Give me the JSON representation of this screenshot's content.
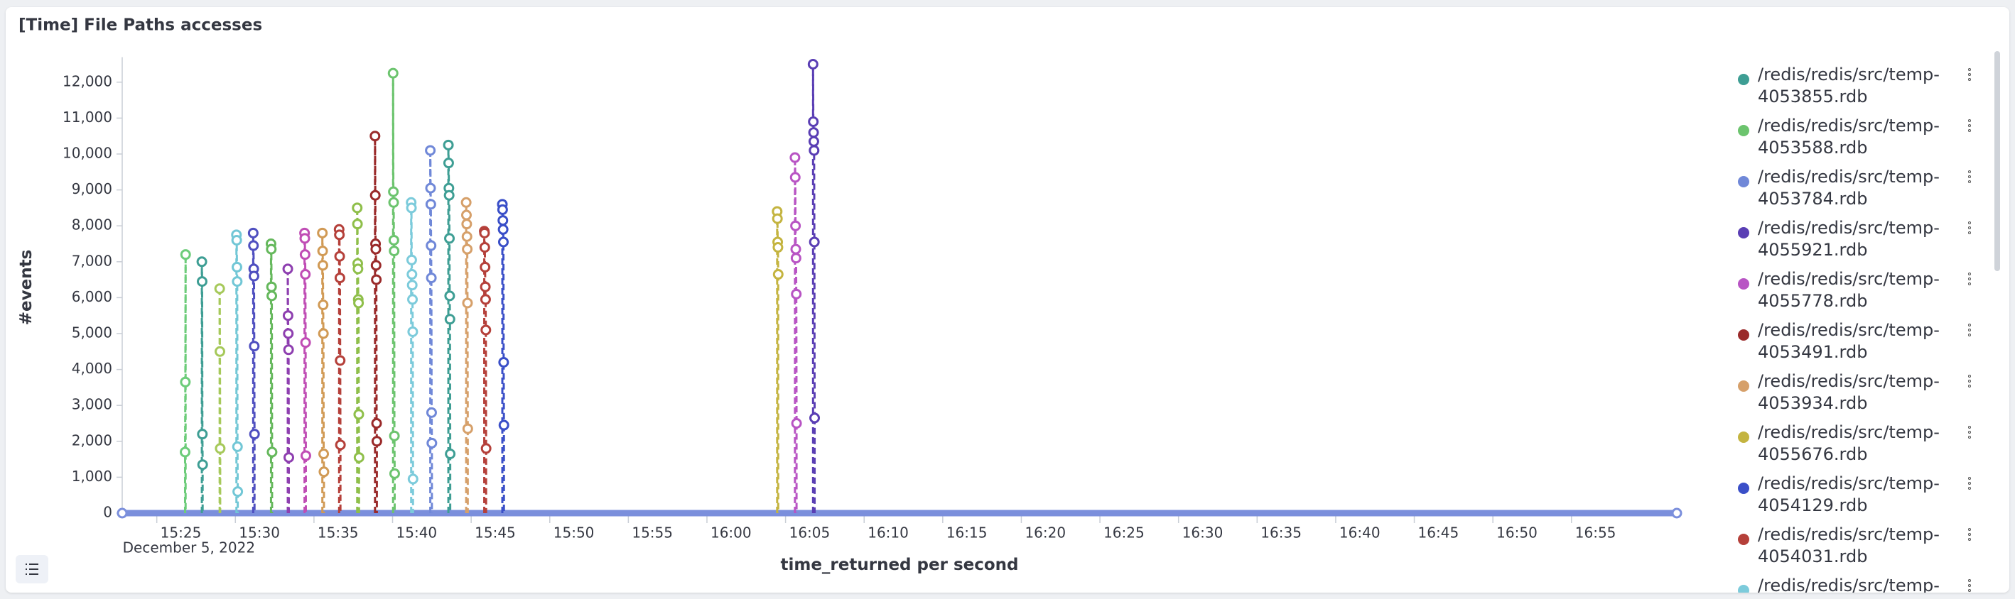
{
  "chart_data": {
    "type": "line",
    "title": "[Time] File Paths accesses",
    "y_label": "#events",
    "x_label": "time_returned per second",
    "x_sublabel": "December 5, 2022",
    "xlim": [
      "15:22:48",
      "17:01:42"
    ],
    "xticks": [
      "15:25",
      "15:30",
      "15:35",
      "15:40",
      "15:45",
      "15:50",
      "15:55",
      "16:00",
      "16:05",
      "16:10",
      "16:15",
      "16:20",
      "16:25",
      "16:30",
      "16:35",
      "16:40",
      "16:45",
      "16:50",
      "16:55"
    ],
    "ylim": [
      0,
      12500
    ],
    "yticks": [
      0,
      {
        "value": 1000,
        "label": "1,000"
      },
      {
        "value": 2000,
        "label": "2,000"
      },
      {
        "value": 3000,
        "label": "3,000"
      },
      {
        "value": 4000,
        "label": "4,000"
      },
      {
        "value": 5000,
        "label": "5,000"
      },
      {
        "value": 6000,
        "label": "6,000"
      },
      {
        "value": 7000,
        "label": "7,000"
      },
      {
        "value": 8000,
        "label": "8,000"
      },
      {
        "value": 9000,
        "label": "9,000"
      },
      {
        "value": 10000,
        "label": "10,000"
      },
      {
        "value": 11000,
        "label": "11,000"
      },
      {
        "value": 12000,
        "label": "12,000"
      }
    ],
    "grid": false,
    "series": [
      {
        "name": "/redis/redis/src/temp-4053855.rdb",
        "color": "#3e9e94",
        "dashed": true,
        "x": [
          "15:43:33",
          "15:43:34",
          "15:43:35",
          "15:43:36",
          "15:43:37",
          "15:43:38",
          "15:43:39",
          "15:43:40"
        ],
        "values": [
          10250,
          9750,
          9050,
          8850,
          7650,
          6050,
          5400,
          1650
        ]
      },
      {
        "name": "/redis/redis/src/temp-4053588.rdb",
        "color": "#6cc46e",
        "dashed": true,
        "x": [
          "15:40:02",
          "15:40:03",
          "15:40:04",
          "15:40:05",
          "15:40:06",
          "15:40:07",
          "15:40:08"
        ],
        "values": [
          12250,
          8950,
          8650,
          7600,
          7300,
          2150,
          1100
        ]
      },
      {
        "name": "/redis/redis/src/temp-4053784.rdb",
        "color": "#7088d8",
        "dashed": true,
        "x": [
          "15:42:24",
          "15:42:25",
          "15:42:26",
          "15:42:27",
          "15:42:28",
          "15:42:29",
          "15:42:30"
        ],
        "values": [
          10100,
          9050,
          8600,
          7450,
          6550,
          2800,
          1950
        ]
      },
      {
        "name": "/redis/redis/src/temp-4055921.rdb",
        "color": "#5a3eb4",
        "dashed": true,
        "x": [
          "16:06:45",
          "16:06:46",
          "16:06:47",
          "16:06:48",
          "16:06:49",
          "16:06:50",
          "16:06:51"
        ],
        "values": [
          12500,
          10900,
          10600,
          10350,
          10100,
          7550,
          2650
        ]
      },
      {
        "name": "/redis/redis/src/temp-4055778.rdb",
        "color": "#b854c4",
        "dashed": true,
        "x": [
          "16:05:36",
          "16:05:37",
          "16:05:38",
          "16:05:39",
          "16:05:40",
          "16:05:41",
          "16:05:42"
        ],
        "values": [
          9900,
          9350,
          8000,
          7350,
          7100,
          6100,
          2500
        ]
      },
      {
        "name": "/redis/redis/src/temp-4053491.rdb",
        "color": "#9a2a2a",
        "dashed": true,
        "x": [
          "15:38:53",
          "15:38:54",
          "15:38:55",
          "15:38:56",
          "15:38:57",
          "15:38:58",
          "15:38:59",
          "15:39:00"
        ],
        "values": [
          10500,
          8850,
          7500,
          7350,
          6900,
          6500,
          2500,
          2000
        ]
      },
      {
        "name": "/redis/redis/src/temp-4053934.rdb",
        "color": "#d6a06a",
        "dashed": true,
        "x": [
          "15:44:41",
          "15:44:42",
          "15:44:43",
          "15:44:44",
          "15:44:45",
          "15:44:46",
          "15:44:47"
        ],
        "values": [
          8650,
          8300,
          8050,
          7700,
          7350,
          5850,
          2350
        ]
      },
      {
        "name": "/redis/redis/src/temp-4055676.rdb",
        "color": "#c4b440",
        "dashed": true,
        "x": [
          "16:04:28",
          "16:04:29",
          "16:04:30",
          "16:04:31",
          "16:04:32"
        ],
        "values": [
          8400,
          8200,
          7550,
          7400,
          6650
        ]
      },
      {
        "name": "/redis/redis/src/temp-4054129.rdb",
        "color": "#3a4fc8",
        "dashed": true,
        "x": [
          "15:46:59",
          "15:47:00",
          "15:47:01",
          "15:47:02",
          "15:47:03",
          "15:47:04",
          "15:47:05"
        ],
        "values": [
          8600,
          8450,
          8150,
          7900,
          7550,
          4200,
          2450
        ]
      },
      {
        "name": "/redis/redis/src/temp-4054031.rdb",
        "color": "#b5403a",
        "dashed": true,
        "x": [
          "15:45:50",
          "15:45:51",
          "15:45:52",
          "15:45:53",
          "15:45:54",
          "15:45:55",
          "15:45:56",
          "15:45:57"
        ],
        "values": [
          7850,
          7800,
          7400,
          6850,
          6300,
          5950,
          5100,
          1800
        ]
      },
      {
        "name": "/redis/redis/src/temp-",
        "color": "#7ccbdb",
        "dashed": true,
        "x": [
          "15:41:11",
          "15:41:12",
          "15:41:13",
          "15:41:14",
          "15:41:15",
          "15:41:16",
          "15:41:17",
          "15:41:18"
        ],
        "values": [
          8650,
          8500,
          7050,
          6650,
          6350,
          5950,
          5050,
          950
        ]
      },
      {
        "color": "#6dcc7a",
        "dashed": true,
        "x": [
          "15:26:48",
          "15:26:49",
          "15:26:50"
        ],
        "values": [
          1700,
          3650,
          7200
        ]
      },
      {
        "color": "#3e9e94",
        "dashed": true,
        "x": [
          "15:27:52",
          "15:27:53",
          "15:27:54",
          "15:27:55"
        ],
        "values": [
          7000,
          6450,
          2200,
          1350
        ]
      },
      {
        "color": "#a6c95a",
        "dashed": true,
        "x": [
          "15:29:00",
          "15:29:01",
          "15:29:02"
        ],
        "values": [
          6250,
          4500,
          1800
        ]
      },
      {
        "color": "#72c7d6",
        "dashed": true,
        "x": [
          "15:30:04",
          "15:30:05",
          "15:30:06",
          "15:30:07",
          "15:30:08",
          "15:30:09"
        ],
        "values": [
          7750,
          7600,
          6850,
          6450,
          1850,
          600
        ]
      },
      {
        "color": "#4f4fc0",
        "dashed": true,
        "x": [
          "15:31:08",
          "15:31:09",
          "15:31:10",
          "15:31:11",
          "15:31:12",
          "15:31:13"
        ],
        "values": [
          7800,
          7450,
          6800,
          6600,
          4650,
          2200
        ]
      },
      {
        "color": "#65b85c",
        "dashed": true,
        "x": [
          "15:32:16",
          "15:32:17",
          "15:32:18",
          "15:32:19",
          "15:32:20"
        ],
        "values": [
          7500,
          7350,
          6300,
          6050,
          1700
        ]
      },
      {
        "color": "#8e3fb0",
        "dashed": true,
        "x": [
          "15:33:20",
          "15:33:21",
          "15:33:22",
          "15:33:23",
          "15:33:24"
        ],
        "values": [
          6800,
          5500,
          5000,
          4550,
          1550
        ]
      },
      {
        "color": "#c04db5",
        "dashed": true,
        "x": [
          "15:34:24",
          "15:34:25",
          "15:34:26",
          "15:34:27",
          "15:34:28",
          "15:34:29"
        ],
        "values": [
          7800,
          7650,
          7200,
          6650,
          4750,
          1600
        ]
      },
      {
        "color": "#d19a55",
        "dashed": true,
        "x": [
          "15:35:32",
          "15:35:33",
          "15:35:34",
          "15:35:35",
          "15:35:36",
          "15:35:37",
          "15:35:38"
        ],
        "values": [
          7800,
          7300,
          6900,
          5800,
          5000,
          1650,
          1150
        ]
      },
      {
        "color": "#b5403a",
        "dashed": true,
        "x": [
          "15:36:36",
          "15:36:37",
          "15:36:38",
          "15:36:39",
          "15:36:40",
          "15:36:41"
        ],
        "values": [
          7900,
          7750,
          7150,
          6550,
          4250,
          1900
        ]
      },
      {
        "color": "#8fbf4a",
        "dashed": true,
        "x": [
          "15:37:45",
          "15:37:46",
          "15:37:47",
          "15:37:48",
          "15:37:49",
          "15:37:50",
          "15:37:51",
          "15:37:52"
        ],
        "values": [
          8500,
          8050,
          6950,
          6800,
          5950,
          5850,
          2750,
          1550
        ]
      },
      {
        "color": "#7b8fdc",
        "dashed": false,
        "x": [
          "15:22:48",
          "17:01:42"
        ],
        "values": [
          0,
          0
        ]
      }
    ]
  }
}
